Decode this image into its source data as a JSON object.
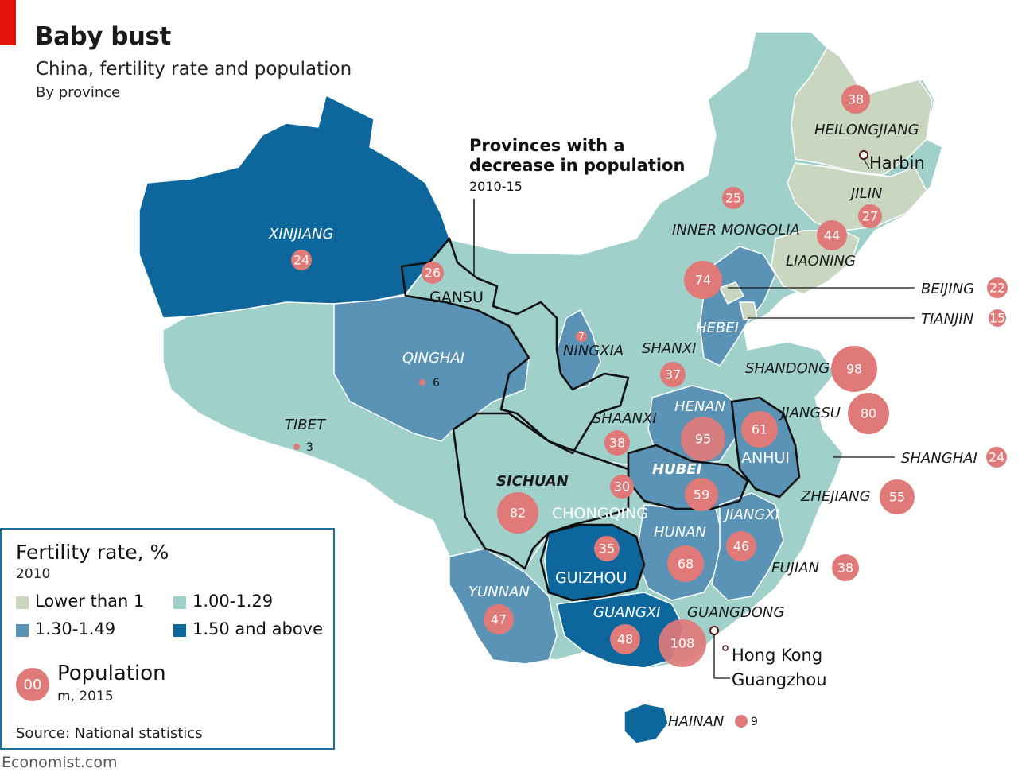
{
  "header": {
    "title": "Baby bust",
    "subtitle": "China, fertility rate and population",
    "subsubtitle": "By province"
  },
  "callout": {
    "title_line1": "Provinces with a",
    "title_line2": "decrease in population",
    "period": "2010-15"
  },
  "colors": {
    "lower_than_1": "#c9d6c0",
    "r100_129": "#9fd0ca",
    "r130_149": "#5b93b6",
    "r150_above": "#0d679c",
    "bubble": "#e07a79",
    "frame": "#1f6f9e"
  },
  "legend": {
    "fertility_title": "Fertility rate, %",
    "fertility_year": "2010",
    "items": [
      {
        "label": "Lower than 1",
        "color": "#c9d6c0"
      },
      {
        "label": "1.00-1.29",
        "color": "#9fd0ca"
      },
      {
        "label": "1.30-1.49",
        "color": "#5b93b6"
      },
      {
        "label": "1.50 and above",
        "color": "#0d679c"
      }
    ],
    "population_badge": "00",
    "population_title": "Population",
    "population_unit": "m, 2015",
    "source": "Source: National statistics"
  },
  "cities": {
    "harbin": "Harbin",
    "hong_kong": "Hong Kong",
    "guangzhou": "Guangzhou"
  },
  "provinces": [
    {
      "name": "XINJIANG",
      "pop": "24"
    },
    {
      "name": "GANSU",
      "pop": "26"
    },
    {
      "name": "QINGHAI",
      "pop": "6"
    },
    {
      "name": "TIBET",
      "pop": "3"
    },
    {
      "name": "NINGXIA",
      "pop": "7"
    },
    {
      "name": "SHANXI",
      "pop": "37"
    },
    {
      "name": "SHAANXI",
      "pop": "38"
    },
    {
      "name": "SICHUAN",
      "pop": "82"
    },
    {
      "name": "CHONGQING",
      "pop": "30"
    },
    {
      "name": "GUIZHOU",
      "pop": "35"
    },
    {
      "name": "YUNNAN",
      "pop": "47"
    },
    {
      "name": "GUANGXI",
      "pop": "48"
    },
    {
      "name": "GUANGDONG",
      "pop": "108"
    },
    {
      "name": "HAINAN",
      "pop": "9"
    },
    {
      "name": "HUNAN",
      "pop": "68"
    },
    {
      "name": "HUBEI",
      "pop": "59"
    },
    {
      "name": "JIANGXI",
      "pop": "46"
    },
    {
      "name": "FUJIAN",
      "pop": "38"
    },
    {
      "name": "ZHEJIANG",
      "pop": "55"
    },
    {
      "name": "SHANGHAI",
      "pop": "24"
    },
    {
      "name": "ANHUI",
      "pop": "61"
    },
    {
      "name": "JIANGSU",
      "pop": "80"
    },
    {
      "name": "HENAN",
      "pop": "95"
    },
    {
      "name": "SHANDONG",
      "pop": "98"
    },
    {
      "name": "HEBEI",
      "pop": "74"
    },
    {
      "name": "BEIJING",
      "pop": "22"
    },
    {
      "name": "TIANJIN",
      "pop": "15"
    },
    {
      "name": "INNER MONGOLIA",
      "pop": "25"
    },
    {
      "name": "LIAONING",
      "pop": "44"
    },
    {
      "name": "JILIN",
      "pop": "27"
    },
    {
      "name": "HEILONGJIANG",
      "pop": "38"
    }
  ],
  "footer": {
    "credit": "Economist.com"
  }
}
